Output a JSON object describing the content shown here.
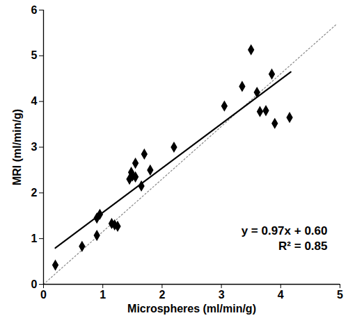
{
  "chart_data": {
    "type": "scatter",
    "x_label": "Microspheres (ml/min/g)",
    "y_label": "MRI (ml/min/g)",
    "xlim": [
      0,
      5
    ],
    "ylim": [
      0,
      6
    ],
    "xticks": [
      0,
      1,
      2,
      3,
      4,
      5
    ],
    "yticks": [
      0,
      1,
      2,
      3,
      4,
      5,
      6
    ],
    "grid": false,
    "color": "#000000",
    "marker": "diamond",
    "x": [
      0.2,
      0.65,
      0.9,
      0.9,
      0.95,
      1.15,
      1.2,
      1.25,
      1.45,
      1.48,
      1.5,
      1.55,
      1.55,
      1.65,
      1.7,
      1.8,
      2.2,
      3.05,
      3.35,
      3.5,
      3.6,
      3.65,
      3.75,
      3.85,
      3.9,
      4.15
    ],
    "values": [
      0.42,
      0.83,
      1.07,
      1.45,
      1.53,
      1.33,
      1.3,
      1.27,
      2.3,
      2.45,
      2.37,
      2.65,
      2.35,
      2.15,
      2.85,
      2.5,
      3.0,
      3.9,
      4.33,
      5.13,
      4.2,
      3.78,
      3.8,
      4.6,
      3.52,
      3.65
    ],
    "fit": {
      "x": [
        0.2,
        4.17
      ],
      "slope": 0.97,
      "intercept": 0.6,
      "line_style": "solid",
      "label": "y = 0.97x + 0.60",
      "r2_label": "R² = 0.85"
    },
    "reference_line": {
      "x": [
        0,
        4.95
      ],
      "y": [
        0,
        5.7
      ],
      "line_style": "dotted"
    }
  }
}
